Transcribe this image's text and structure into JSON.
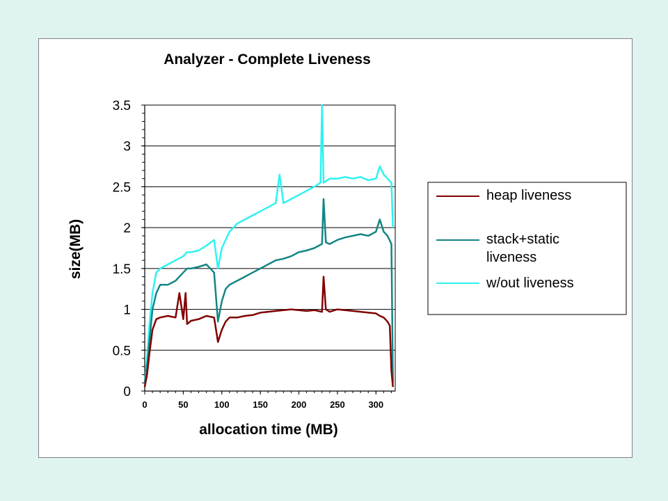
{
  "chart_data": {
    "type": "line",
    "title": "Analyzer - Complete Liveness",
    "xlabel": "allocation time (MB)",
    "ylabel": "size(MB)",
    "xlim": [
      0,
      325
    ],
    "ylim": [
      0,
      3.5
    ],
    "x_ticks": [
      0,
      50,
      100,
      150,
      200,
      250,
      300
    ],
    "y_ticks": [
      "0",
      "0.5",
      "1",
      "1.5",
      "2",
      "2.5",
      "3",
      "3.5"
    ],
    "grid": true,
    "legend_position": "right",
    "series": [
      {
        "name": "heap liveness",
        "color": "#800000",
        "x": [
          0,
          3,
          6,
          10,
          15,
          20,
          30,
          40,
          45,
          50,
          53,
          55,
          60,
          70,
          80,
          90,
          95,
          100,
          105,
          110,
          120,
          130,
          140,
          150,
          160,
          170,
          180,
          190,
          200,
          210,
          220,
          230,
          232,
          235,
          240,
          250,
          260,
          270,
          280,
          290,
          300,
          305,
          310,
          315,
          318,
          320,
          322
        ],
        "values": [
          0.05,
          0.2,
          0.45,
          0.75,
          0.88,
          0.9,
          0.92,
          0.9,
          1.2,
          0.88,
          1.2,
          0.82,
          0.86,
          0.88,
          0.92,
          0.9,
          0.6,
          0.75,
          0.85,
          0.9,
          0.9,
          0.92,
          0.93,
          0.96,
          0.97,
          0.98,
          0.99,
          1.0,
          0.99,
          0.98,
          0.99,
          0.97,
          1.4,
          1.0,
          0.97,
          1.0,
          0.99,
          0.98,
          0.97,
          0.96,
          0.95,
          0.92,
          0.9,
          0.85,
          0.8,
          0.25,
          0.05
        ]
      },
      {
        "name": "stack+static liveness",
        "color": "#138584",
        "x": [
          0,
          3,
          6,
          10,
          15,
          20,
          30,
          40,
          50,
          55,
          60,
          70,
          80,
          90,
          95,
          100,
          105,
          110,
          120,
          130,
          140,
          150,
          160,
          170,
          180,
          190,
          200,
          210,
          220,
          230,
          232,
          235,
          240,
          250,
          260,
          270,
          280,
          290,
          300,
          305,
          310,
          315,
          320,
          322
        ],
        "values": [
          0.1,
          0.3,
          0.6,
          1.0,
          1.2,
          1.3,
          1.3,
          1.35,
          1.45,
          1.5,
          1.5,
          1.52,
          1.55,
          1.45,
          0.85,
          1.1,
          1.25,
          1.3,
          1.35,
          1.4,
          1.45,
          1.5,
          1.55,
          1.6,
          1.62,
          1.65,
          1.7,
          1.72,
          1.75,
          1.8,
          2.35,
          1.82,
          1.8,
          1.85,
          1.88,
          1.9,
          1.92,
          1.9,
          1.95,
          2.1,
          1.95,
          1.9,
          1.8,
          0.1
        ]
      },
      {
        "name": "w/out liveness",
        "color": "#2ff2f2",
        "x": [
          0,
          3,
          6,
          10,
          15,
          20,
          30,
          40,
          50,
          55,
          60,
          70,
          80,
          90,
          95,
          100,
          105,
          110,
          120,
          130,
          140,
          150,
          160,
          170,
          175,
          180,
          190,
          200,
          210,
          220,
          228,
          230,
          232,
          240,
          250,
          260,
          270,
          280,
          290,
          300,
          305,
          310,
          315,
          320,
          322
        ],
        "values": [
          0.1,
          0.4,
          0.8,
          1.2,
          1.45,
          1.5,
          1.55,
          1.6,
          1.65,
          1.7,
          1.7,
          1.72,
          1.78,
          1.85,
          1.5,
          1.75,
          1.85,
          1.95,
          2.05,
          2.1,
          2.15,
          2.2,
          2.25,
          2.3,
          2.65,
          2.3,
          2.35,
          2.4,
          2.45,
          2.5,
          2.55,
          3.5,
          2.55,
          2.6,
          2.6,
          2.62,
          2.6,
          2.62,
          2.58,
          2.6,
          2.75,
          2.65,
          2.6,
          2.55,
          2.0
        ]
      }
    ]
  }
}
